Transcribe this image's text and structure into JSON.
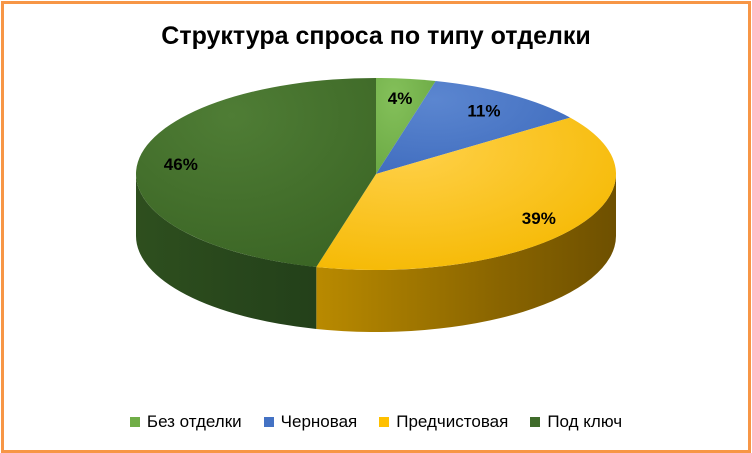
{
  "chart_data": {
    "type": "pie",
    "title": "Структура спроса по типу отделки",
    "categories": [
      "Без отделки",
      "Черновая",
      "Предчистовая",
      "Под ключ"
    ],
    "values": [
      4,
      11,
      39,
      46
    ],
    "labels": [
      "4%",
      "11%",
      "39%",
      "46%"
    ],
    "colors": [
      "#70ad47",
      "#4472c4",
      "#ffc000",
      "#3f6b2a"
    ],
    "legend_position": "bottom",
    "style": "3d"
  }
}
